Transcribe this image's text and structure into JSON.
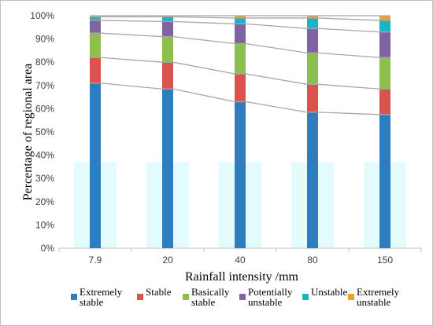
{
  "chart_data": {
    "type": "bar",
    "stacked": true,
    "categories": [
      "7.9",
      "20",
      "40",
      "80",
      "150"
    ],
    "series": [
      {
        "name": "Extremely stable",
        "color": "#2e7ebf",
        "values": [
          71,
          68.5,
          63,
          58.5,
          57.5
        ]
      },
      {
        "name": "Stable",
        "color": "#d9534f",
        "values": [
          11,
          11.5,
          12,
          12,
          11
        ]
      },
      {
        "name": "Basically stable",
        "color": "#8cbf4e",
        "values": [
          10.5,
          11,
          13,
          13.5,
          13.5
        ]
      },
      {
        "name": "Potentially unstable",
        "color": "#8064a2",
        "values": [
          5.5,
          6.5,
          8.5,
          10.5,
          11
        ]
      },
      {
        "name": "Unstable",
        "color": "#1fb2c7",
        "values": [
          1.5,
          2,
          2.5,
          4.5,
          5
        ]
      },
      {
        "name": "Extremely unstable",
        "color": "#f0a030",
        "values": [
          0.5,
          0.5,
          1,
          1,
          2
        ]
      }
    ],
    "xlabel": "Rainfall intensity /mm",
    "ylabel": "Percentage of regional area",
    "ylim": [
      0,
      100
    ],
    "yticks": [
      "0%",
      "10%",
      "20%",
      "30%",
      "40%",
      "50%",
      "60%",
      "70%",
      "80%",
      "90%",
      "100%"
    ],
    "connector_lines": true,
    "connector_color": "#a6a6a6",
    "legend_position": "bottom",
    "grid": false
  }
}
